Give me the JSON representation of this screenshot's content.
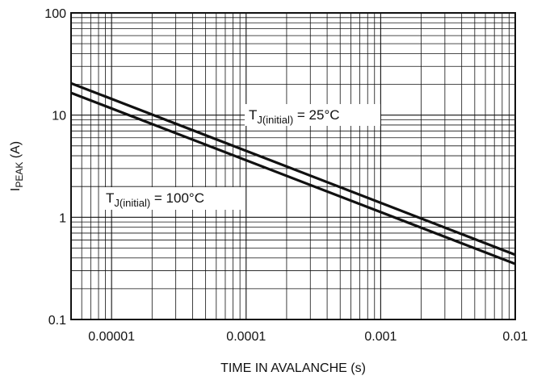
{
  "chart_data": {
    "type": "line",
    "title": "",
    "xlabel": "TIME IN AVALANCHE (s)",
    "ylabel_main": "I",
    "ylabel_sub": "PEAK",
    "ylabel_unit": " (A)",
    "xscale": "log",
    "yscale": "log",
    "xlim": [
      5e-06,
      0.01
    ],
    "ylim": [
      0.1,
      100
    ],
    "grid": true,
    "xticks": [
      {
        "value": 1e-05,
        "label": "0.00001"
      },
      {
        "value": 0.0001,
        "label": "0.0001"
      },
      {
        "value": 0.001,
        "label": "0.001"
      },
      {
        "value": 0.01,
        "label": "0.01"
      }
    ],
    "yticks": [
      {
        "value": 0.1,
        "label": "0.1"
      },
      {
        "value": 1,
        "label": "1"
      },
      {
        "value": 10,
        "label": "10"
      },
      {
        "value": 100,
        "label": "100"
      }
    ],
    "series": [
      {
        "x": [
          5e-06,
          0.01
        ],
        "y": [
          20.5,
          0.43
        ]
      },
      {
        "x": [
          5e-06,
          0.01
        ],
        "y": [
          16.5,
          0.35
        ]
      }
    ],
    "annotations": [
      {
        "main": "T",
        "sub": "J(initial)",
        "rest": " = 25°C"
      },
      {
        "main": "T",
        "sub": "J(initial)",
        "rest": " = 100°C"
      }
    ]
  }
}
